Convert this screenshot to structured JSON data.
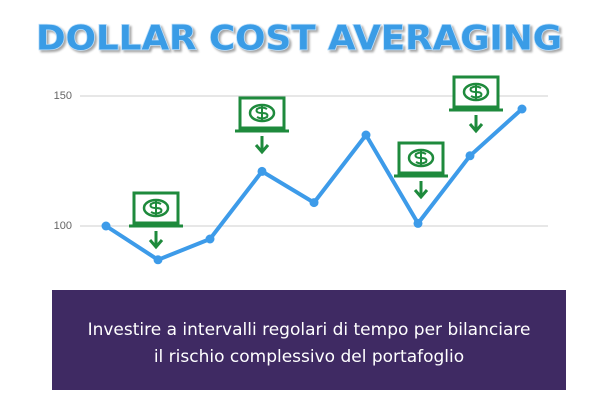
{
  "chart_data": {
    "type": "line",
    "title": "DOLLAR COST AVERAGING",
    "caption": [
      "Investire a intervalli regolari di tempo per bilanciare",
      "il rischio complessivo del portafoglio"
    ],
    "categories": [
      null,
      null,
      null,
      null,
      null,
      null,
      null,
      null,
      null
    ],
    "series": [
      {
        "color": "#3d9be9",
        "values": [
          100,
          87,
          95,
          121,
          109,
          135,
          101,
          127,
          145
        ]
      }
    ],
    "ylim": [
      80,
      160
    ],
    "yticks": [
      100,
      150
    ],
    "grid": true
  }
}
